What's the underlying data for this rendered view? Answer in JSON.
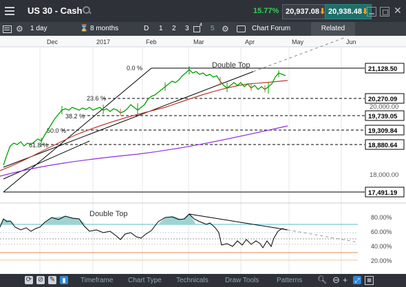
{
  "window": {
    "title": "US 30 - Cash",
    "change_pct": "15.77%",
    "sell_price": "20,937.08",
    "buy_price": "20,938.48"
  },
  "toolbar": {
    "interval": "1 day",
    "range": "8 months",
    "d_label": "D",
    "n1": "1",
    "n2": "2",
    "n3": "3",
    "n5": "5",
    "badge": "4",
    "forum": "Chart Forum",
    "related": "Related"
  },
  "chart": {
    "x_labels": [
      "Dec",
      "2017",
      "Feb",
      "Mar",
      "Apr",
      "May",
      "Jun"
    ],
    "price_labels": [
      "21,128.50",
      "20,270.09",
      "20,000.00",
      "19,739.05",
      "19,309.84",
      "18,880.64",
      "18,000.00",
      "17,491.19"
    ],
    "fib_labels": [
      "0.0 %",
      "23.6 %",
      "38.2 %",
      "50.0 %",
      "61.8 %"
    ],
    "annotation": "Double Top",
    "colors": {
      "price": "#00a000",
      "ma_red": "#c0392b",
      "ma_purple": "#8e2de0",
      "fill": "#9fd3d3"
    }
  },
  "oscillator": {
    "annotation": "Double Top",
    "labels": [
      "80.00%",
      "60.00%",
      "40.00%",
      "20.00%"
    ]
  },
  "bottom": {
    "items": [
      "Timeframe",
      "Chart Type",
      "Technicals",
      "Draw Tools",
      "Patterns"
    ]
  }
}
